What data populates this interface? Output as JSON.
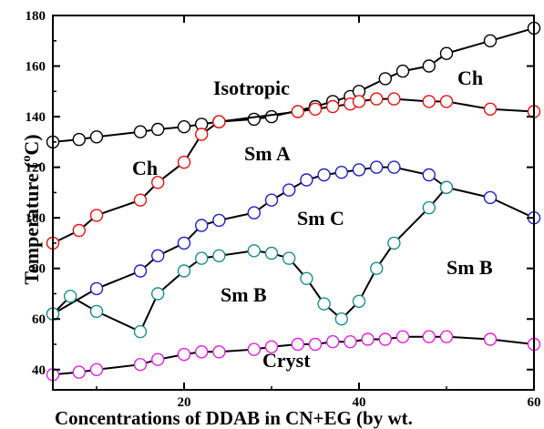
{
  "chart_data": {
    "type": "line",
    "title": "",
    "xlabel": "Concentrations of DDAB in CN+EG (by wt.",
    "ylabel_main": "Temperature (",
    "ylabel_sup": "o",
    "ylabel_unit": "C)",
    "xlim": [
      5,
      60
    ],
    "ylim": [
      32,
      180
    ],
    "xticks": [
      20,
      40,
      60
    ],
    "yticks": [
      40,
      60,
      80,
      100,
      120,
      140,
      160,
      180
    ],
    "grid": false,
    "region_labels": [
      "Isotropic",
      "Ch",
      "Ch",
      "Sm A",
      "Sm C",
      "Sm B",
      "Sm B",
      "Cryst"
    ],
    "series": [
      {
        "color": "#000000",
        "x": [
          5,
          8,
          10,
          15,
          17,
          20,
          22,
          24,
          28,
          30,
          35,
          37,
          39,
          40,
          43,
          45,
          48,
          50,
          55,
          60
        ],
        "y": [
          130,
          131,
          132,
          134,
          135,
          136,
          137,
          138,
          139,
          140,
          144,
          146,
          148,
          150,
          155,
          158,
          160,
          165,
          170,
          175
        ]
      },
      {
        "color": "#e8110f",
        "x": [
          5,
          8,
          10,
          15,
          17,
          20,
          22,
          24,
          33,
          35,
          37,
          39,
          40,
          42,
          44,
          48,
          50,
          55,
          60
        ],
        "y": [
          90,
          95,
          101,
          107,
          114,
          122,
          133,
          138,
          142,
          143,
          144,
          145,
          146,
          147,
          147,
          146,
          146,
          143,
          142
        ]
      },
      {
        "color": "#1f1fc8",
        "x": [
          5,
          10,
          15,
          17,
          20,
          22,
          24,
          28,
          30,
          32,
          34,
          36,
          38,
          40,
          42,
          44,
          48,
          50,
          55,
          60
        ],
        "y": [
          62,
          72,
          79,
          85,
          90,
          97,
          99,
          102,
          107,
          111,
          115,
          117,
          118,
          119,
          120,
          120,
          117,
          112,
          108,
          100
        ]
      },
      {
        "color": "#1e8c8c",
        "x": [
          5,
          7,
          10,
          15,
          17,
          20,
          22,
          24,
          28,
          30,
          32,
          34,
          36,
          38,
          40,
          42,
          44,
          48,
          50
        ],
        "y": [
          62,
          69,
          63,
          55,
          70,
          79,
          84,
          85,
          87,
          86,
          84,
          76,
          66,
          60,
          67,
          80,
          90,
          104,
          112
        ]
      },
      {
        "color": "#e020e0",
        "x": [
          5,
          8,
          10,
          15,
          17,
          20,
          22,
          24,
          28,
          30,
          33,
          35,
          37,
          39,
          41,
          43,
          45,
          48,
          50,
          55,
          60
        ],
        "y": [
          38,
          39,
          40,
          42,
          44,
          46,
          47,
          47,
          48,
          49,
          50,
          50,
          51,
          51,
          52,
          52,
          53,
          53,
          53,
          52,
          50
        ]
      }
    ]
  }
}
